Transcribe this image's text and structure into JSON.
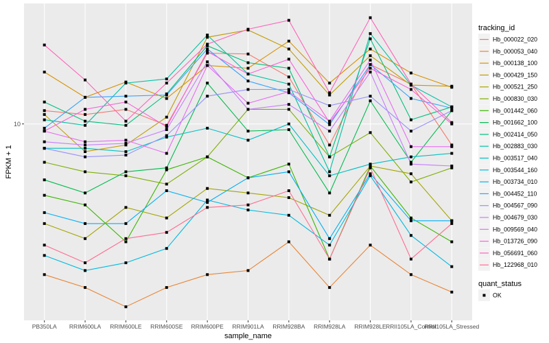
{
  "chart_data": {
    "type": "line",
    "title": "",
    "xlabel": "sample_name",
    "ylabel": "FPKM + 1",
    "yscale": "log10",
    "ylim": [
      2.45,
      23.7
    ],
    "yticks": [
      10
    ],
    "ytick_labels": [
      "10"
    ],
    "grid": true,
    "categories": [
      "PB350LA",
      "RRIM600LA",
      "RRIM600LE",
      "RRIM600SE",
      "RRIM600PE",
      "RRIM901LA",
      "RRIM928BA",
      "RRIM928LA",
      "RRIM928LE",
      "RRII105LA_Control",
      "RRII105LA_Stressed"
    ],
    "legend": {
      "placement": "right",
      "color_title": "tracking_id",
      "shape_title": "quant_status",
      "shape_entries": [
        "OK"
      ]
    },
    "series": [
      {
        "name": "Hb_000022_020",
        "color": "#F8766D",
        "values": [
          11.0,
          10.7,
          11.1,
          9.9,
          16.6,
          16.5,
          14.0,
          8.6,
          15.3,
          13.3,
          8.6
        ]
      },
      {
        "name": "Hb_000053_040",
        "color": "#EA8331",
        "values": [
          3.4,
          3.1,
          2.7,
          3.1,
          3.4,
          3.5,
          4.3,
          3.1,
          4.2,
          3.4,
          3.0
        ]
      },
      {
        "name": "Hb_000138_100",
        "color": "#D89000",
        "values": [
          14.5,
          12.1,
          13.5,
          12.0,
          15.2,
          14.9,
          18.1,
          13.4,
          17.1,
          14.4,
          13.0
        ]
      },
      {
        "name": "Hb_000429_150",
        "color": "#C09B00",
        "values": [
          10.7,
          8.2,
          8.6,
          10.5,
          18.6,
          19.6,
          17.1,
          12.3,
          16.3,
          13.2,
          13.1
        ]
      },
      {
        "name": "Hb_000521_250",
        "color": "#A3A500",
        "values": [
          4.9,
          4.4,
          5.5,
          5.1,
          6.3,
          6.1,
          5.9,
          5.2,
          7.4,
          7.0,
          5.0
        ]
      },
      {
        "name": "Hb_000830_030",
        "color": "#7CAE00",
        "values": [
          7.6,
          7.1,
          6.9,
          6.5,
          7.9,
          11.1,
          11.1,
          7.9,
          9.4,
          6.6,
          7.3
        ]
      },
      {
        "name": "Hb_001442_060",
        "color": "#39B600",
        "values": [
          6.0,
          5.6,
          4.3,
          7.2,
          7.9,
          6.8,
          7.5,
          3.8,
          7.4,
          5.1,
          4.3
        ]
      },
      {
        "name": "Hb_001662_100",
        "color": "#00BB4E",
        "values": [
          6.7,
          6.1,
          7.1,
          7.3,
          13.4,
          9.5,
          9.6,
          6.1,
          11.8,
          7.6,
          11.0
        ]
      },
      {
        "name": "Hb_002414_050",
        "color": "#00BF7D",
        "values": [
          11.7,
          10.2,
          9.9,
          12.4,
          17.5,
          15.5,
          14.9,
          7.9,
          18.4,
          10.3,
          11.3
        ]
      },
      {
        "name": "Hb_002883_030",
        "color": "#00C1A3",
        "values": [
          10.3,
          9.9,
          13.4,
          13.8,
          18.9,
          14.3,
          13.3,
          7.1,
          19.1,
          13.2,
          11.3
        ]
      },
      {
        "name": "Hb_003517_040",
        "color": "#00BFC4",
        "values": [
          8.4,
          8.4,
          8.2,
          9.1,
          9.7,
          8.9,
          10.0,
          6.9,
          7.5,
          7.9,
          8.1
        ]
      },
      {
        "name": "Hb_003544_160",
        "color": "#00BAE0",
        "values": [
          3.9,
          3.5,
          3.7,
          4.1,
          5.8,
          5.4,
          5.2,
          4.2,
          6.9,
          4.5,
          3.6
        ]
      },
      {
        "name": "Hb_003734_010",
        "color": "#00B0F6",
        "values": [
          5.3,
          4.9,
          4.9,
          6.2,
          5.7,
          6.8,
          7.1,
          4.4,
          7.0,
          5.0,
          5.0
        ]
      },
      {
        "name": "Hb_004452_110",
        "color": "#35A2FF",
        "values": [
          9.7,
          12.1,
          12.2,
          12.3,
          17.1,
          13.6,
          12.5,
          9.95,
          15.3,
          12.0,
          11.2
        ]
      },
      {
        "name": "Hb_004567_090",
        "color": "#9590FF",
        "values": [
          8.4,
          7.9,
          8.0,
          9.2,
          12.2,
          12.8,
          12.8,
          11.4,
          12.2,
          9.5,
          11.0
        ]
      },
      {
        "name": "Hb_004679_030",
        "color": "#C77CFF",
        "values": [
          8.8,
          8.6,
          8.7,
          9.6,
          15.6,
          11.1,
          11.5,
          9.5,
          14.5,
          7.5,
          7.4
        ]
      },
      {
        "name": "Hb_009569_040",
        "color": "#E76BF3",
        "values": [
          9.5,
          8.8,
          8.9,
          8.1,
          15.2,
          11.6,
          12.6,
          10.2,
          15.8,
          8.5,
          8.5
        ]
      },
      {
        "name": "Hb_013726_090",
        "color": "#FA62DB",
        "values": [
          9.5,
          11.1,
          11.7,
          9.8,
          16.8,
          14.3,
          15.9,
          10.1,
          14.9,
          12.8,
          10.0
        ]
      },
      {
        "name": "Hb_056691_060",
        "color": "#FF62BC",
        "values": [
          17.6,
          13.7,
          10.2,
          13.4,
          17.7,
          19.7,
          21.0,
          12.5,
          21.4,
          13.3,
          10.1
        ]
      },
      {
        "name": "Hb_122968_010",
        "color": "#FF6C91",
        "values": [
          4.2,
          3.7,
          4.4,
          4.6,
          5.5,
          5.6,
          6.2,
          3.8,
          7.3,
          3.8,
          4.9
        ]
      }
    ]
  }
}
